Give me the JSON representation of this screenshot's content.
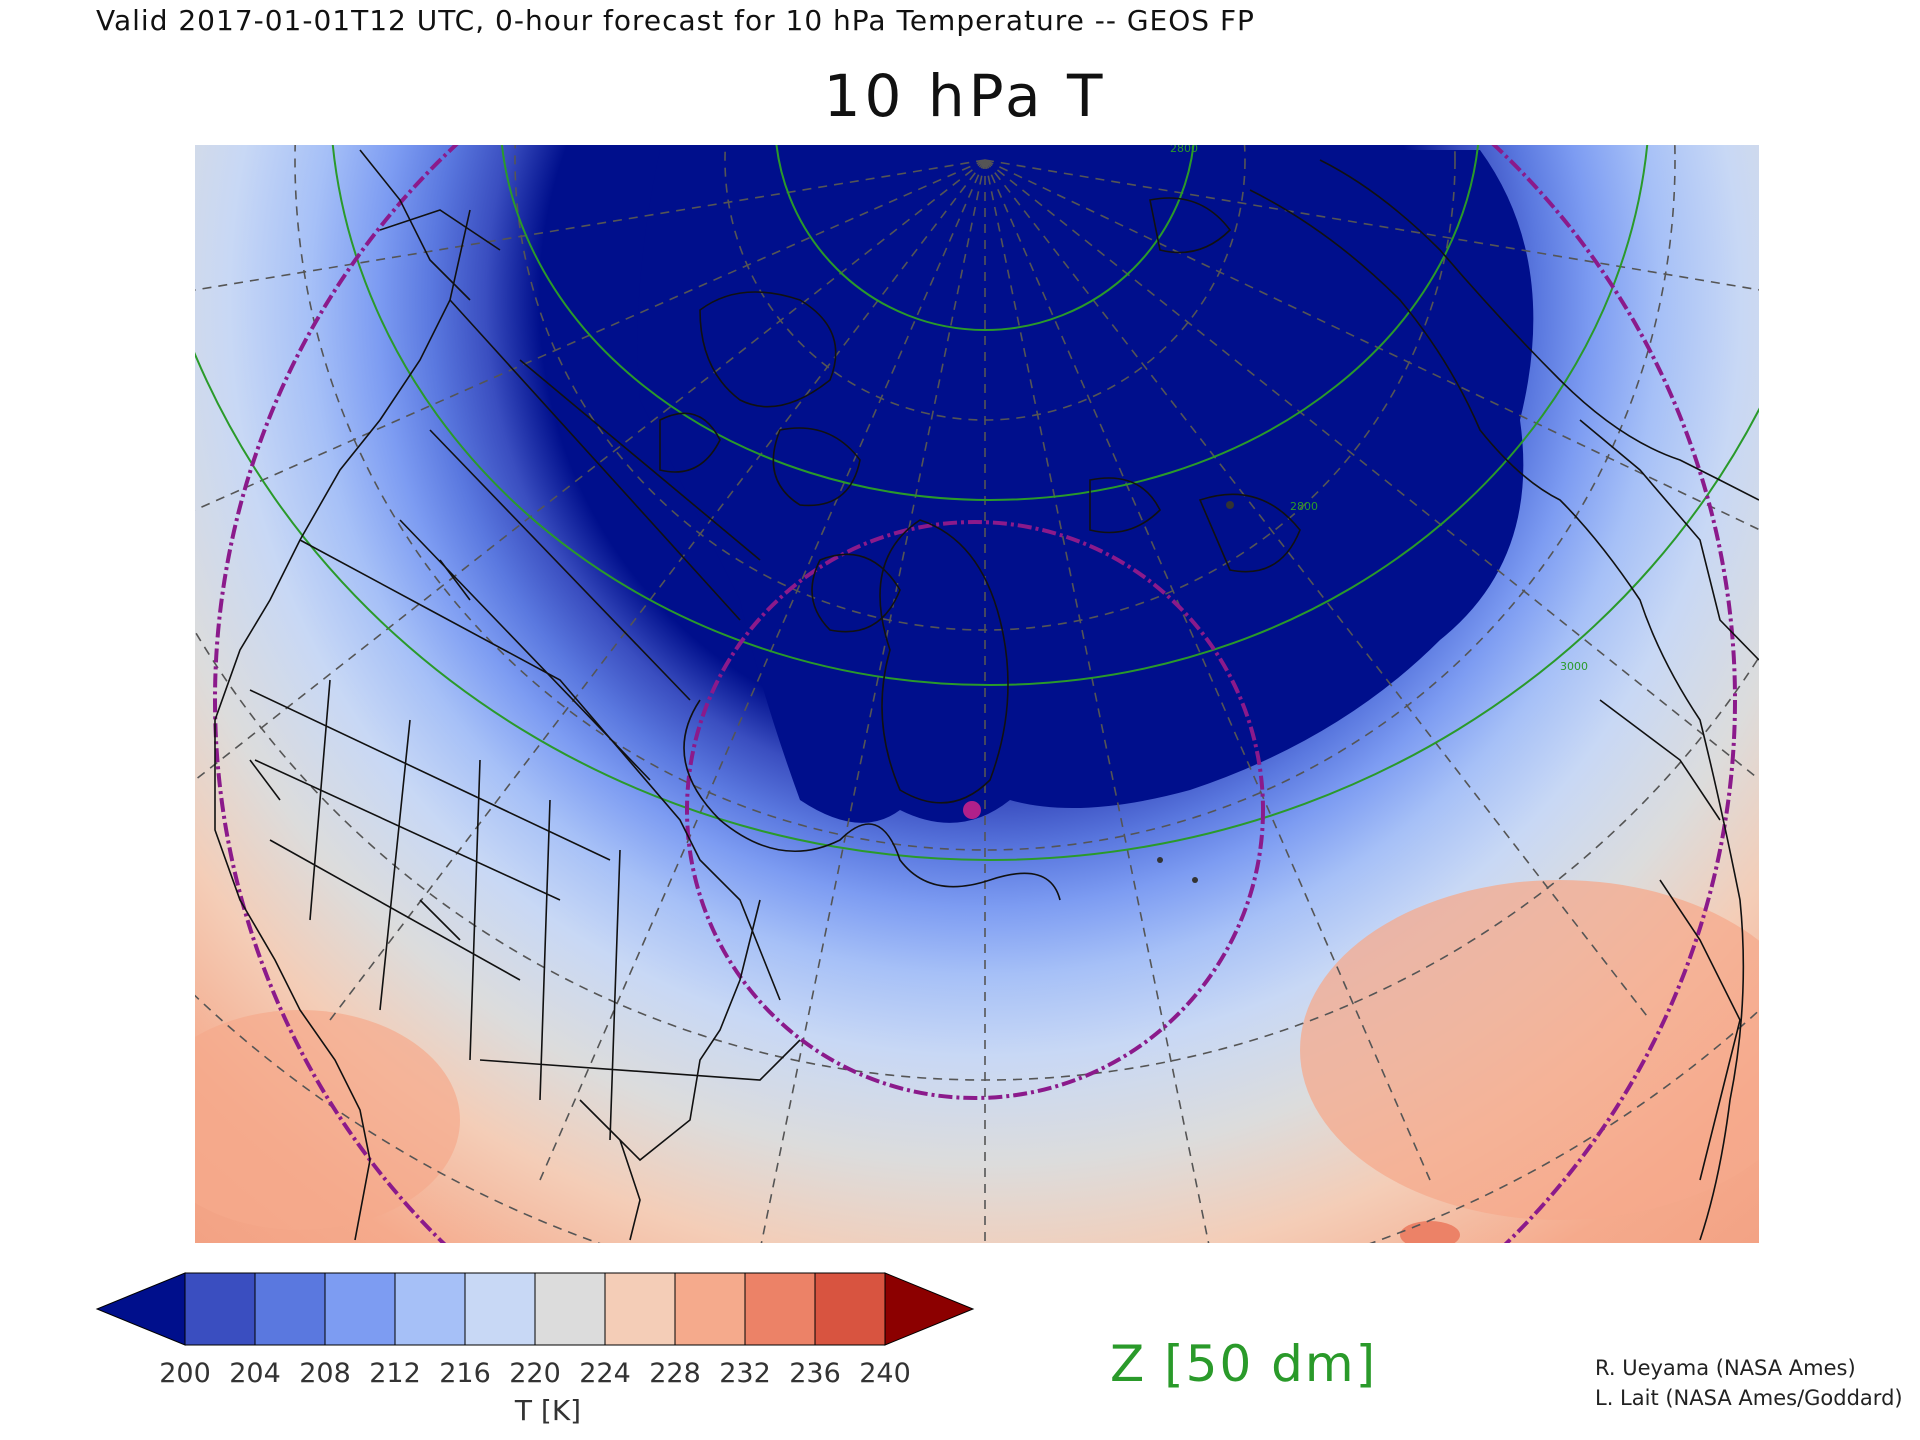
{
  "header": {
    "valid_line": "Valid 2017-01-01T12 UTC, 0-hour forecast for 10 hPa Temperature -- GEOS FP",
    "title": "10 hPa T"
  },
  "colorbar": {
    "title": "T [K]",
    "labels": [
      "200",
      "204",
      "208",
      "212",
      "216",
      "220",
      "224",
      "228",
      "232",
      "236",
      "240"
    ],
    "colors": [
      "#000f8c",
      "#3a4ec0",
      "#5a78df",
      "#7d9cf2",
      "#a6c0f7",
      "#c8d8f5",
      "#dcdcdc",
      "#f4cdb7",
      "#f5aa8c",
      "#ec8267",
      "#d85440",
      "#8c0000"
    ]
  },
  "contour_legend": {
    "label": "Z [50 dm]",
    "color": "#2a9a2a"
  },
  "contour_labels": [
    "2800",
    "3000",
    "2800"
  ],
  "credits": [
    "R. Ueyama (NASA Ames)",
    "L. Lait (NASA Ames/Goddard)"
  ],
  "colors": {
    "trajectory_circle": "#8b1a8b",
    "marker": "#b0208a",
    "graticule": "#555555"
  }
}
